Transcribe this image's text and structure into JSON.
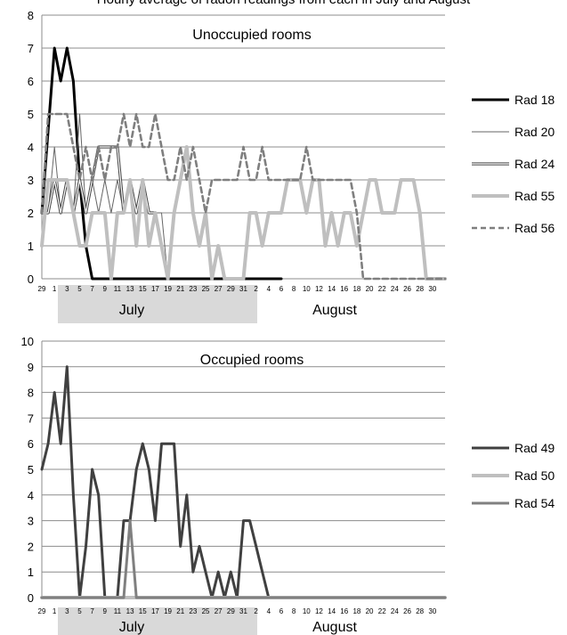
{
  "page_title": "Hourly average of radon readings from each in July and August",
  "chart_data": [
    {
      "type": "line",
      "title": "Unoccupied rooms",
      "ylim": [
        0,
        8
      ],
      "yticks": [
        0,
        1,
        2,
        3,
        4,
        5,
        6,
        7,
        8
      ],
      "x_tick_labels": [
        "29",
        "1",
        "3",
        "5",
        "7",
        "9",
        "11",
        "13",
        "15",
        "17",
        "19",
        "21",
        "23",
        "25",
        "27",
        "29",
        "31",
        "2",
        "4",
        "6",
        "8",
        "10",
        "12",
        "14",
        "16",
        "18",
        "20",
        "22",
        "24",
        "26",
        "28",
        "30"
      ],
      "month_labels": [
        "July",
        "August"
      ],
      "grid": true,
      "legend": "right",
      "series": [
        {
          "name": "Rad 18",
          "style": "thick-black",
          "color": "#000000",
          "points": [
            [
              0,
              2
            ],
            [
              2,
              7
            ],
            [
              3,
              6
            ],
            [
              4,
              7
            ],
            [
              5,
              6
            ],
            [
              6,
              3
            ],
            [
              7,
              1
            ],
            [
              8,
              0
            ],
            [
              10,
              0
            ],
            [
              14,
              0
            ],
            [
              20,
              0
            ],
            [
              26,
              0
            ],
            [
              30,
              0
            ],
            [
              36,
              0
            ],
            [
              38,
              0
            ]
          ]
        },
        {
          "name": "Rad 20",
          "style": "thin-gray",
          "color": "#666666",
          "points": [
            [
              0,
              2
            ],
            [
              1,
              2
            ],
            [
              2,
              4
            ],
            [
              3,
              2
            ],
            [
              4,
              3
            ],
            [
              5,
              2
            ],
            [
              6,
              5
            ],
            [
              7,
              2
            ],
            [
              8,
              3
            ],
            [
              9,
              2
            ],
            [
              10,
              3
            ],
            [
              11,
              2
            ],
            [
              12,
              3
            ],
            [
              13,
              2
            ],
            [
              14,
              3
            ],
            [
              15,
              2
            ],
            [
              16,
              3
            ],
            [
              17,
              2
            ],
            [
              18,
              2
            ],
            [
              19,
              2
            ],
            [
              20,
              0
            ]
          ]
        },
        {
          "name": "Rad 24",
          "style": "double",
          "color": "#444444",
          "points": [
            [
              0,
              2
            ],
            [
              1,
              2
            ],
            [
              2,
              3
            ],
            [
              3,
              2
            ],
            [
              4,
              3
            ],
            [
              5,
              2
            ],
            [
              6,
              3
            ],
            [
              7,
              2
            ],
            [
              8,
              3
            ],
            [
              9,
              4
            ],
            [
              10,
              4
            ],
            [
              11,
              4
            ],
            [
              12,
              4
            ],
            [
              13,
              2
            ],
            [
              14,
              3
            ],
            [
              15,
              2
            ],
            [
              16,
              3
            ],
            [
              17,
              2
            ],
            [
              18,
              2
            ],
            [
              19,
              1
            ],
            [
              20,
              0
            ]
          ]
        },
        {
          "name": "Rad 55",
          "style": "thick-light",
          "color": "#BFBFBF",
          "points": [
            [
              0,
              1
            ],
            [
              1,
              3
            ],
            [
              2,
              3
            ],
            [
              3,
              3
            ],
            [
              4,
              3
            ],
            [
              5,
              2
            ],
            [
              6,
              1
            ],
            [
              7,
              1
            ],
            [
              8,
              2
            ],
            [
              9,
              2
            ],
            [
              10,
              2
            ],
            [
              11,
              0
            ],
            [
              12,
              2
            ],
            [
              13,
              2
            ],
            [
              14,
              3
            ],
            [
              15,
              1
            ],
            [
              16,
              3
            ],
            [
              17,
              1
            ],
            [
              18,
              2
            ],
            [
              19,
              1
            ],
            [
              20,
              0
            ],
            [
              21,
              2
            ],
            [
              22,
              3
            ],
            [
              23,
              4
            ],
            [
              24,
              2
            ],
            [
              25,
              1
            ],
            [
              26,
              2
            ],
            [
              27,
              0
            ],
            [
              28,
              1
            ],
            [
              29,
              0
            ],
            [
              30,
              0
            ],
            [
              31,
              0
            ],
            [
              32,
              0
            ],
            [
              33,
              2
            ],
            [
              34,
              2
            ],
            [
              35,
              1
            ],
            [
              36,
              2
            ],
            [
              37,
              2
            ],
            [
              38,
              2
            ],
            [
              39,
              3
            ],
            [
              40,
              3
            ],
            [
              41,
              3
            ],
            [
              42,
              2
            ],
            [
              43,
              3
            ],
            [
              44,
              3
            ],
            [
              45,
              1
            ],
            [
              46,
              2
            ],
            [
              47,
              1
            ],
            [
              48,
              2
            ],
            [
              49,
              2
            ],
            [
              50,
              1
            ],
            [
              51,
              2
            ],
            [
              52,
              3
            ],
            [
              53,
              3
            ],
            [
              54,
              2
            ],
            [
              55,
              2
            ],
            [
              56,
              2
            ],
            [
              57,
              3
            ],
            [
              58,
              3
            ],
            [
              59,
              3
            ],
            [
              60,
              2
            ],
            [
              61,
              0
            ],
            [
              62,
              0
            ],
            [
              63,
              0
            ],
            [
              64,
              0
            ]
          ]
        },
        {
          "name": "Rad 56",
          "style": "dashed",
          "color": "#7F7F7F",
          "points": [
            [
              0,
              2
            ],
            [
              1,
              5
            ],
            [
              2,
              5
            ],
            [
              3,
              5
            ],
            [
              4,
              5
            ],
            [
              5,
              4
            ],
            [
              6,
              3
            ],
            [
              7,
              4
            ],
            [
              8,
              3
            ],
            [
              9,
              4
            ],
            [
              10,
              3
            ],
            [
              11,
              4
            ],
            [
              12,
              4
            ],
            [
              13,
              5
            ],
            [
              14,
              4
            ],
            [
              15,
              5
            ],
            [
              16,
              4
            ],
            [
              17,
              4
            ],
            [
              18,
              5
            ],
            [
              19,
              4
            ],
            [
              20,
              3
            ],
            [
              21,
              3
            ],
            [
              22,
              4
            ],
            [
              23,
              3
            ],
            [
              24,
              4
            ],
            [
              25,
              3
            ],
            [
              26,
              2
            ],
            [
              27,
              3
            ],
            [
              28,
              3
            ],
            [
              29,
              3
            ],
            [
              30,
              3
            ],
            [
              31,
              3
            ],
            [
              32,
              4
            ],
            [
              33,
              3
            ],
            [
              34,
              3
            ],
            [
              35,
              4
            ],
            [
              36,
              3
            ],
            [
              37,
              3
            ],
            [
              38,
              3
            ],
            [
              39,
              3
            ],
            [
              40,
              3
            ],
            [
              41,
              3
            ],
            [
              42,
              4
            ],
            [
              43,
              3
            ],
            [
              44,
              3
            ],
            [
              45,
              3
            ],
            [
              46,
              3
            ],
            [
              47,
              3
            ],
            [
              48,
              3
            ],
            [
              49,
              3
            ],
            [
              50,
              2
            ],
            [
              51,
              0
            ],
            [
              52,
              0
            ],
            [
              55,
              0
            ],
            [
              60,
              0
            ],
            [
              64,
              0
            ]
          ]
        }
      ]
    },
    {
      "type": "line",
      "title": "Occupied rooms",
      "ylim": [
        0,
        10
      ],
      "yticks": [
        0,
        1,
        2,
        3,
        4,
        5,
        6,
        7,
        8,
        9,
        10
      ],
      "x_tick_labels": [
        "29",
        "1",
        "3",
        "5",
        "7",
        "9",
        "11",
        "13",
        "15",
        "17",
        "19",
        "21",
        "23",
        "25",
        "27",
        "29",
        "31",
        "2",
        "4",
        "6",
        "8",
        "10",
        "12",
        "14",
        "16",
        "18",
        "20",
        "22",
        "24",
        "26",
        "28",
        "30"
      ],
      "month_labels": [
        "July",
        "August"
      ],
      "grid": true,
      "legend": "right",
      "series": [
        {
          "name": "Rad 49",
          "style": "thick-dark",
          "color": "#404040",
          "points": [
            [
              0,
              5
            ],
            [
              1,
              6
            ],
            [
              2,
              8
            ],
            [
              3,
              6
            ],
            [
              4,
              9
            ],
            [
              5,
              4
            ],
            [
              6,
              0
            ],
            [
              7,
              2
            ],
            [
              8,
              5
            ],
            [
              9,
              4
            ],
            [
              10,
              0
            ],
            [
              11,
              0
            ],
            [
              12,
              0
            ],
            [
              13,
              3
            ],
            [
              14,
              3
            ],
            [
              15,
              5
            ],
            [
              16,
              6
            ],
            [
              17,
              5
            ],
            [
              18,
              3
            ],
            [
              19,
              6
            ],
            [
              20,
              6
            ],
            [
              21,
              6
            ],
            [
              22,
              2
            ],
            [
              23,
              4
            ],
            [
              24,
              1
            ],
            [
              25,
              2
            ],
            [
              26,
              1
            ],
            [
              27,
              0
            ],
            [
              28,
              1
            ],
            [
              29,
              0
            ],
            [
              30,
              1
            ],
            [
              31,
              0
            ],
            [
              32,
              3
            ],
            [
              33,
              3
            ],
            [
              34,
              2
            ],
            [
              35,
              1
            ],
            [
              36,
              0
            ],
            [
              40,
              0
            ],
            [
              50,
              0
            ],
            [
              64,
              0
            ]
          ]
        },
        {
          "name": "Rad 50",
          "style": "thick-light",
          "color": "#BFBFBF",
          "points": [
            [
              0,
              0
            ],
            [
              64,
              0
            ]
          ]
        },
        {
          "name": "Rad 54",
          "style": "medium-gray",
          "color": "#808080",
          "points": [
            [
              0,
              0
            ],
            [
              13,
              0
            ],
            [
              14,
              3
            ],
            [
              15,
              0
            ],
            [
              64,
              0
            ]
          ]
        }
      ]
    }
  ]
}
